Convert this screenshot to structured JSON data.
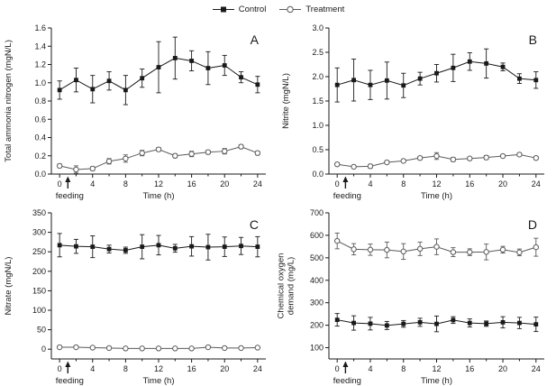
{
  "figure": {
    "background": "#ffffff",
    "axis_color": "#1a1a1a"
  },
  "legend": {
    "items": [
      {
        "label": "Control",
        "marker": "filled-square",
        "color": "#1a1a1a"
      },
      {
        "label": "Treatment",
        "marker": "open-circle",
        "color": "#5a5a5a"
      }
    ]
  },
  "chart_data": [
    {
      "type": "line",
      "panel_label": "A",
      "ylabel_lines": [
        "Total ammonia nitrogen (mgN/L)"
      ],
      "xlabel": "Time (h)",
      "annotation": "feeding",
      "annotation_x": 1,
      "x": [
        0,
        2,
        4,
        6,
        8,
        10,
        12,
        14,
        16,
        18,
        20,
        22,
        24
      ],
      "xticks": [
        0,
        4,
        8,
        12,
        16,
        20,
        24
      ],
      "xtick_labels": [
        "0",
        "4",
        "8",
        "12",
        "16",
        "20",
        "24"
      ],
      "xminor": [
        2,
        6,
        10,
        14,
        18,
        22
      ],
      "xlim": [
        -1,
        25
      ],
      "ylim": [
        0,
        1.6
      ],
      "yticks": [
        0,
        0.2,
        0.4,
        0.6,
        0.8,
        1.0,
        1.2,
        1.4,
        1.6
      ],
      "ytick_labels": [
        "0.0",
        "0.2",
        "0.4",
        "0.6",
        "0.8",
        "1.0",
        "1.2",
        "1.4",
        "1.6"
      ],
      "grid": false,
      "series": [
        {
          "name": "Control",
          "marker": "filled-square",
          "color": "#1a1a1a",
          "values": [
            0.92,
            1.03,
            0.93,
            1.02,
            0.92,
            1.05,
            1.17,
            1.27,
            1.24,
            1.16,
            1.19,
            1.06,
            0.98
          ],
          "errors": [
            0.1,
            0.13,
            0.15,
            0.1,
            0.16,
            0.1,
            0.28,
            0.23,
            0.11,
            0.18,
            0.11,
            0.06,
            0.09
          ]
        },
        {
          "name": "Treatment",
          "marker": "open-circle",
          "color": "#5a5a5a",
          "values": [
            0.09,
            0.05,
            0.06,
            0.14,
            0.17,
            0.23,
            0.27,
            0.2,
            0.22,
            0.24,
            0.25,
            0.3,
            0.23
          ],
          "errors": [
            0.02,
            0.04,
            0.02,
            0.03,
            0.04,
            0.03,
            0.02,
            0.02,
            0.03,
            0.02,
            0.03,
            0.02,
            0.02
          ]
        }
      ]
    },
    {
      "type": "line",
      "panel_label": "B",
      "ylabel_lines": [
        "Nitrite (mgN/L)"
      ],
      "xlabel": "Time (h)",
      "annotation": "feeding",
      "annotation_x": 1,
      "x": [
        0,
        2,
        4,
        6,
        8,
        10,
        12,
        14,
        16,
        18,
        20,
        22,
        24
      ],
      "xticks": [
        0,
        4,
        8,
        12,
        16,
        20,
        24
      ],
      "xtick_labels": [
        "0",
        "4",
        "8",
        "12",
        "16",
        "20",
        "24"
      ],
      "xminor": [
        2,
        6,
        10,
        14,
        18,
        22
      ],
      "xlim": [
        -1,
        25
      ],
      "ylim": [
        0,
        3.0
      ],
      "yticks": [
        0,
        0.5,
        1.0,
        1.5,
        2.0,
        2.5,
        3.0
      ],
      "ytick_labels": [
        "0.0",
        "0.5",
        "1.0",
        "1.5",
        "2.0",
        "2.5",
        "3.0"
      ],
      "grid": false,
      "series": [
        {
          "name": "Control",
          "marker": "filled-square",
          "color": "#1a1a1a",
          "values": [
            1.83,
            1.93,
            1.83,
            1.92,
            1.82,
            1.96,
            2.07,
            2.18,
            2.31,
            2.27,
            2.2,
            1.96,
            1.93
          ],
          "errors": [
            0.35,
            0.43,
            0.3,
            0.38,
            0.25,
            0.13,
            0.18,
            0.28,
            0.18,
            0.3,
            0.08,
            0.1,
            0.17
          ]
        },
        {
          "name": "Treatment",
          "marker": "open-circle",
          "color": "#5a5a5a",
          "values": [
            0.2,
            0.15,
            0.16,
            0.24,
            0.27,
            0.33,
            0.37,
            0.3,
            0.32,
            0.34,
            0.37,
            0.4,
            0.33
          ],
          "errors": [
            0.03,
            0.03,
            0.04,
            0.03,
            0.03,
            0.03,
            0.07,
            0.04,
            0.03,
            0.04,
            0.03,
            0.03,
            0.03
          ]
        }
      ]
    },
    {
      "type": "line",
      "panel_label": "C",
      "ylabel_lines": [
        "Nitrate (mgN/L)"
      ],
      "xlabel": "Time (h)",
      "annotation": "feeding",
      "annotation_x": 1,
      "x": [
        0,
        2,
        4,
        6,
        8,
        10,
        12,
        14,
        16,
        18,
        20,
        22,
        24
      ],
      "xticks": [
        0,
        4,
        8,
        12,
        16,
        20,
        24
      ],
      "xtick_labels": [
        "0",
        "4",
        "8",
        "12",
        "16",
        "20",
        "24"
      ],
      "xminor": [
        2,
        6,
        10,
        14,
        18,
        22
      ],
      "xlim": [
        -1,
        25
      ],
      "ylim": [
        -25,
        350
      ],
      "yticks": [
        0,
        50,
        100,
        150,
        200,
        250,
        300,
        350
      ],
      "ytick_labels": [
        "0",
        "50",
        "100",
        "150",
        "200",
        "250",
        "300",
        "350"
      ],
      "grid": false,
      "series": [
        {
          "name": "Control",
          "marker": "filled-square",
          "color": "#1a1a1a",
          "values": [
            267,
            264,
            263,
            257,
            254,
            263,
            267,
            259,
            264,
            262,
            263,
            265,
            263
          ],
          "errors": [
            30,
            18,
            28,
            10,
            8,
            31,
            25,
            10,
            25,
            33,
            25,
            22,
            26
          ]
        },
        {
          "name": "Treatment",
          "marker": "open-circle",
          "color": "#5a5a5a",
          "values": [
            5,
            5,
            4,
            3,
            2,
            2,
            2,
            2,
            2,
            5,
            3,
            3,
            4
          ],
          "errors": [
            2,
            2,
            2,
            2,
            2,
            2,
            2,
            2,
            2,
            2,
            2,
            2,
            2
          ]
        }
      ]
    },
    {
      "type": "line",
      "panel_label": "D",
      "ylabel_lines": [
        "Chemical oxygen",
        "demand (mg/L)"
      ],
      "xlabel": "Time (h)",
      "annotation": "feeding",
      "annotation_x": 1,
      "x": [
        0,
        2,
        4,
        6,
        8,
        10,
        12,
        14,
        16,
        18,
        20,
        22,
        24
      ],
      "xticks": [
        0,
        4,
        8,
        12,
        16,
        20,
        24
      ],
      "xtick_labels": [
        "0",
        "4",
        "8",
        "12",
        "16",
        "20",
        "24"
      ],
      "xminor": [
        2,
        6,
        10,
        14,
        18,
        22
      ],
      "xlim": [
        -1,
        25
      ],
      "ylim": [
        50,
        700
      ],
      "yticks": [
        100,
        200,
        300,
        400,
        500,
        600,
        700
      ],
      "ytick_labels": [
        "100",
        "200",
        "300",
        "400",
        "500",
        "600",
        "700"
      ],
      "grid": false,
      "series": [
        {
          "name": "Control",
          "marker": "filled-square",
          "color": "#1a1a1a",
          "values": [
            224,
            210,
            207,
            199,
            206,
            213,
            206,
            223,
            210,
            207,
            213,
            210,
            204
          ],
          "errors": [
            28,
            32,
            28,
            18,
            15,
            18,
            35,
            15,
            18,
            12,
            25,
            25,
            32
          ]
        },
        {
          "name": "Treatment",
          "marker": "open-circle",
          "color": "#5a5a5a",
          "values": [
            575,
            538,
            536,
            535,
            528,
            540,
            549,
            525,
            525,
            526,
            536,
            524,
            547
          ],
          "errors": [
            35,
            25,
            25,
            35,
            35,
            30,
            35,
            20,
            15,
            35,
            15,
            15,
            40
          ]
        }
      ]
    }
  ]
}
